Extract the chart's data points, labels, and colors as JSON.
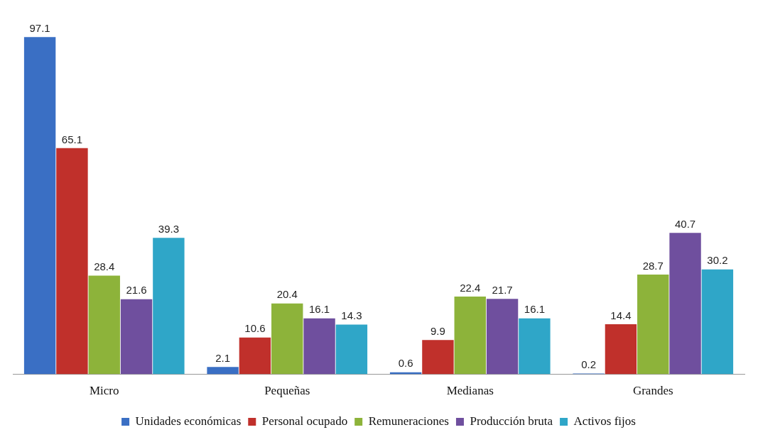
{
  "chart_data": {
    "type": "bar",
    "categories": [
      "Micro",
      "Pequeñas",
      "Medianas",
      "Grandes"
    ],
    "series": [
      {
        "name": "Unidades económicas",
        "color": "#3a6fc4",
        "values": [
          97.1,
          2.1,
          0.6,
          0.2
        ]
      },
      {
        "name": "Personal ocupado",
        "color": "#c0302b",
        "values": [
          65.1,
          10.6,
          9.9,
          14.4
        ]
      },
      {
        "name": "Remuneraciones",
        "color": "#8db33a",
        "values": [
          28.4,
          20.4,
          22.4,
          28.7
        ]
      },
      {
        "name": "Producción bruta",
        "color": "#6f4f9e",
        "values": [
          21.6,
          16.1,
          21.7,
          40.7
        ]
      },
      {
        "name": "Activos fijos",
        "color": "#2fa6c8",
        "values": [
          39.3,
          14.3,
          16.1,
          30.2
        ]
      }
    ],
    "data_labels": true,
    "legend": "bottom",
    "grid": false
  }
}
